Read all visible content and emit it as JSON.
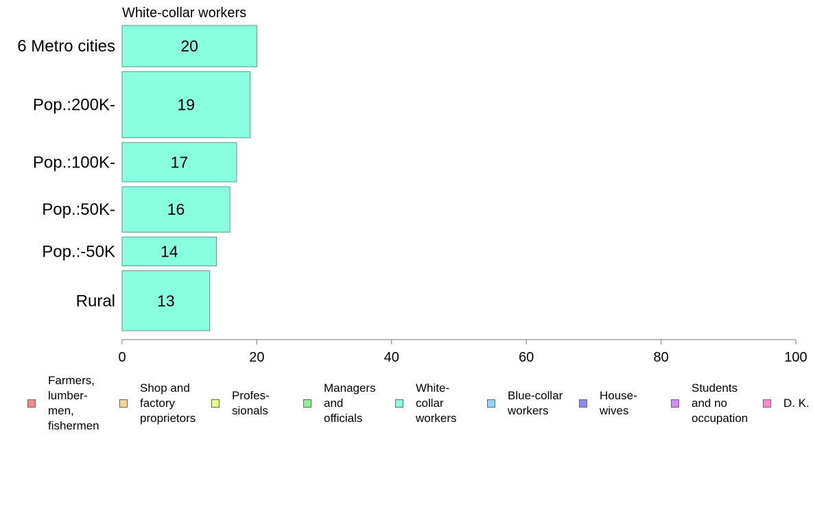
{
  "chart_data": {
    "type": "bar",
    "orientation": "horizontal",
    "title": "White-collar workers",
    "categories": [
      "6 Metro cities",
      "Pop.:200K-",
      "Pop.:100K-",
      "Pop.:50K-",
      "Pop.:-50K",
      "Rural"
    ],
    "values": [
      20,
      19,
      17,
      16,
      14,
      13
    ],
    "bar_weights": [
      1.0,
      1.6,
      0.95,
      1.1,
      0.7,
      1.45
    ],
    "value_labels": [
      "20",
      "19",
      "17",
      "16",
      "14",
      "13"
    ],
    "bar_color": "#8affdf",
    "bar_edge_color": "#5a9a8a",
    "xlim": [
      0,
      100
    ],
    "x_ticks": [
      "0",
      "20",
      "40",
      "60",
      "80",
      "100"
    ],
    "xlabel": "",
    "ylabel": "",
    "grid": false,
    "legend_position": "bottom"
  },
  "legend": [
    {
      "label": "Farmers,\nlumber-\nmen,\nfishermen",
      "color": "#f28b82"
    },
    {
      "label": "Shop and\nfactory\nproprietors",
      "color": "#f8d68a"
    },
    {
      "label": "Profes-\nsionals",
      "color": "#e3f98a"
    },
    {
      "label": "Managers\nand\nofficials",
      "color": "#8af28a"
    },
    {
      "label": "White-\ncollar\nworkers",
      "color": "#8affdf"
    },
    {
      "label": "Blue-collar\nworkers",
      "color": "#8ad8f8"
    },
    {
      "label": "House-\nwives",
      "color": "#8a8af2"
    },
    {
      "label": "Students\nand no\noccupation",
      "color": "#d98af8"
    },
    {
      "label": "D. K.",
      "color": "#f88ad8"
    }
  ]
}
